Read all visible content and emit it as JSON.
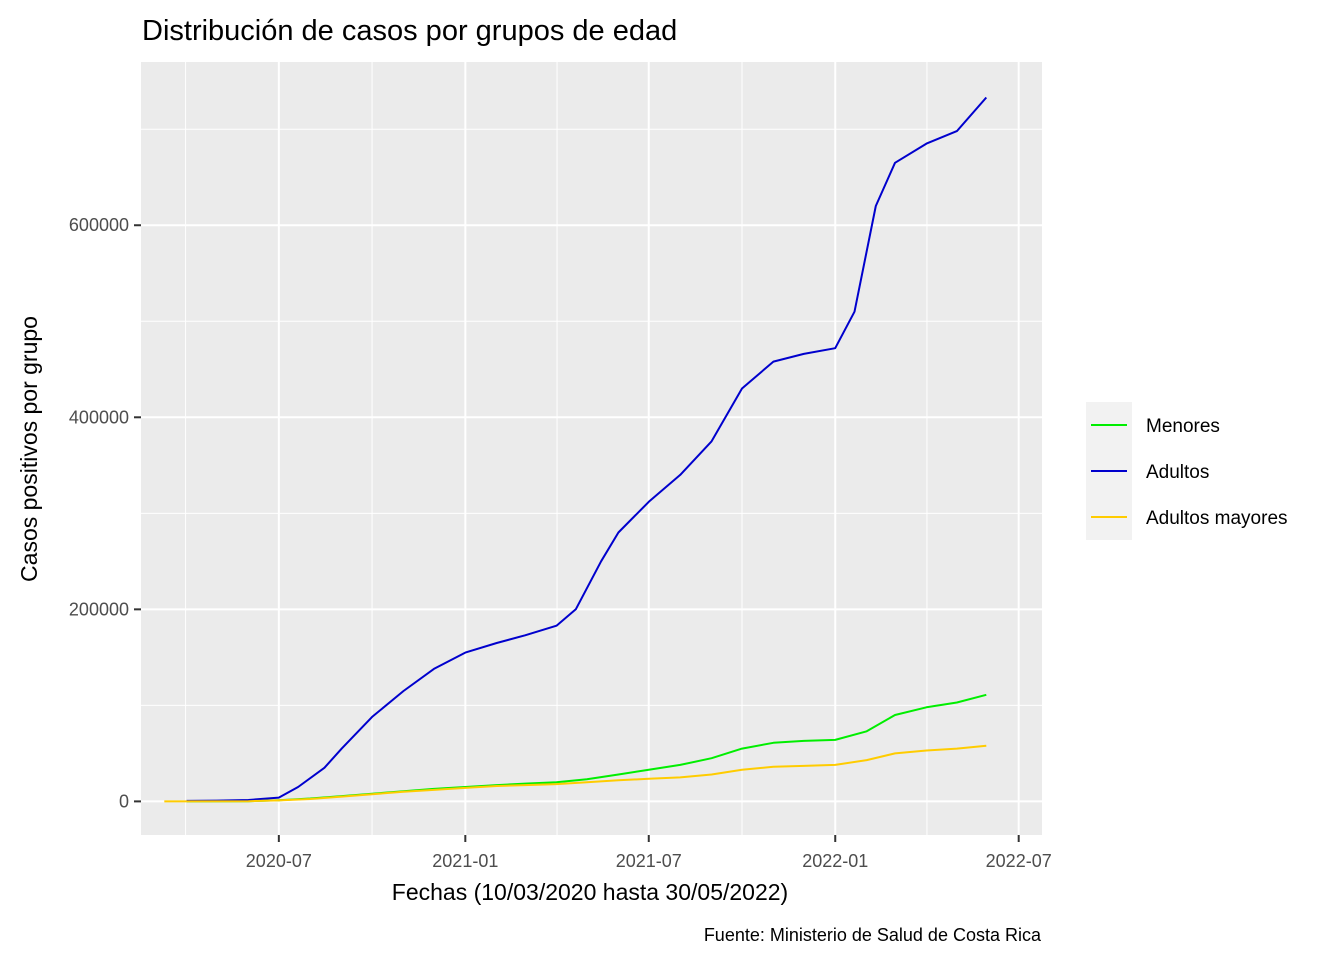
{
  "chart_data": {
    "type": "line",
    "title": "Distribución de casos por grupos de edad",
    "xlabel": "Fechas (10/03/2020 hasta 30/05/2022)",
    "ylabel": "Casos positivos por grupo",
    "caption": "Fuente: Ministerio de Salud de Costa Rica",
    "x_ticks": [
      "2020-07",
      "2021-01",
      "2021-07",
      "2022-01",
      "2022-07"
    ],
    "y_ticks": [
      0,
      200000,
      400000,
      600000
    ],
    "xlim": [
      "2020-02-16",
      "2022-07-24"
    ],
    "ylim": [
      -35000,
      770000
    ],
    "grid": true,
    "legend_position": "right",
    "series": [
      {
        "name": "Menores",
        "color": "#00ee00",
        "points": [
          [
            "2020-04-01",
            0
          ],
          [
            "2020-06-01",
            200
          ],
          [
            "2020-07-01",
            1200
          ],
          [
            "2020-08-01",
            3000
          ],
          [
            "2020-09-01",
            5500
          ],
          [
            "2020-10-01",
            8000
          ],
          [
            "2020-11-01",
            10500
          ],
          [
            "2020-12-01",
            13000
          ],
          [
            "2021-01-01",
            15000
          ],
          [
            "2021-02-01",
            17000
          ],
          [
            "2021-03-01",
            18500
          ],
          [
            "2021-04-01",
            20000
          ],
          [
            "2021-05-01",
            23000
          ],
          [
            "2021-06-01",
            28000
          ],
          [
            "2021-07-01",
            33000
          ],
          [
            "2021-08-01",
            38000
          ],
          [
            "2021-09-01",
            45000
          ],
          [
            "2021-10-01",
            55000
          ],
          [
            "2021-11-01",
            61000
          ],
          [
            "2021-12-01",
            63000
          ],
          [
            "2022-01-01",
            64000
          ],
          [
            "2022-02-01",
            73000
          ],
          [
            "2022-03-01",
            90000
          ],
          [
            "2022-04-01",
            98000
          ],
          [
            "2022-05-01",
            103000
          ],
          [
            "2022-05-30",
            111000
          ]
        ]
      },
      {
        "name": "Adultos",
        "color": "#0000cd",
        "points": [
          [
            "2020-04-01",
            500
          ],
          [
            "2020-05-01",
            800
          ],
          [
            "2020-06-01",
            1500
          ],
          [
            "2020-07-01",
            4000
          ],
          [
            "2020-07-20",
            15000
          ],
          [
            "2020-08-15",
            35000
          ],
          [
            "2020-09-01",
            55000
          ],
          [
            "2020-10-01",
            88000
          ],
          [
            "2020-11-01",
            115000
          ],
          [
            "2020-12-01",
            138000
          ],
          [
            "2021-01-01",
            155000
          ],
          [
            "2021-02-01",
            165000
          ],
          [
            "2021-03-01",
            173000
          ],
          [
            "2021-04-01",
            183000
          ],
          [
            "2021-04-20",
            200000
          ],
          [
            "2021-05-15",
            250000
          ],
          [
            "2021-06-01",
            280000
          ],
          [
            "2021-07-01",
            312000
          ],
          [
            "2021-08-01",
            340000
          ],
          [
            "2021-09-01",
            375000
          ],
          [
            "2021-10-01",
            430000
          ],
          [
            "2021-11-01",
            458000
          ],
          [
            "2021-12-01",
            466000
          ],
          [
            "2022-01-01",
            472000
          ],
          [
            "2022-01-20",
            510000
          ],
          [
            "2022-02-10",
            620000
          ],
          [
            "2022-03-01",
            665000
          ],
          [
            "2022-04-01",
            685000
          ],
          [
            "2022-05-01",
            698000
          ],
          [
            "2022-05-30",
            733000
          ]
        ]
      },
      {
        "name": "Adultos mayores",
        "color": "#ffcc00",
        "points": [
          [
            "2020-03-10",
            0
          ],
          [
            "2020-06-01",
            200
          ],
          [
            "2020-07-01",
            1000
          ],
          [
            "2020-08-01",
            2500
          ],
          [
            "2020-09-01",
            5000
          ],
          [
            "2020-10-01",
            7500
          ],
          [
            "2020-11-01",
            10000
          ],
          [
            "2020-12-01",
            12000
          ],
          [
            "2021-01-01",
            14000
          ],
          [
            "2021-02-01",
            16000
          ],
          [
            "2021-03-01",
            17000
          ],
          [
            "2021-04-01",
            18000
          ],
          [
            "2021-05-01",
            20000
          ],
          [
            "2021-06-01",
            22000
          ],
          [
            "2021-07-01",
            23500
          ],
          [
            "2021-08-01",
            25000
          ],
          [
            "2021-09-01",
            28000
          ],
          [
            "2021-10-01",
            33000
          ],
          [
            "2021-11-01",
            36000
          ],
          [
            "2021-12-01",
            37000
          ],
          [
            "2022-01-01",
            38000
          ],
          [
            "2022-02-01",
            43000
          ],
          [
            "2022-03-01",
            50000
          ],
          [
            "2022-04-01",
            53000
          ],
          [
            "2022-05-01",
            55000
          ],
          [
            "2022-05-30",
            58000
          ]
        ]
      }
    ]
  }
}
